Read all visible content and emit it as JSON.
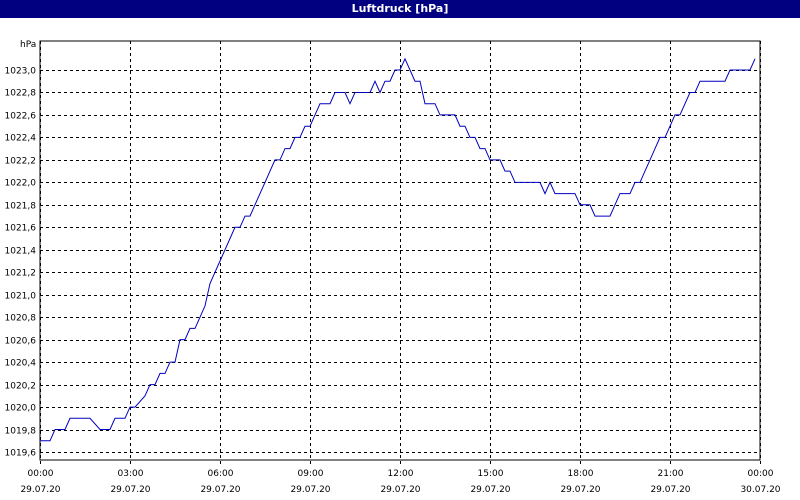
{
  "window": {
    "title": "Luftdruck [hPa]"
  },
  "chart_data": {
    "type": "line",
    "title": "Luftdruck [hPa]",
    "ylabel": "hPa",
    "xlabel": "",
    "ylim": [
      1019.6,
      1023.0
    ],
    "xlim": [
      "29.07.20 00:00",
      "30.07.20 00:00"
    ],
    "grid": true,
    "y_ticks": [
      "1019,6",
      "1019,8",
      "1020,0",
      "1020,2",
      "1020,4",
      "1020,6",
      "1020,8",
      "1021,0",
      "1021,2",
      "1021,4",
      "1021,6",
      "1021,8",
      "1022,0",
      "1022,2",
      "1022,4",
      "1022,6",
      "1022,8",
      "1023,0"
    ],
    "x_ticks": [
      {
        "time": "00:00",
        "date": "29.07.20"
      },
      {
        "time": "03:00",
        "date": "29.07.20"
      },
      {
        "time": "06:00",
        "date": "29.07.20"
      },
      {
        "time": "09:00",
        "date": "29.07.20"
      },
      {
        "time": "12:00",
        "date": "29.07.20"
      },
      {
        "time": "15:00",
        "date": "29.07.20"
      },
      {
        "time": "18:00",
        "date": "29.07.20"
      },
      {
        "time": "21:00",
        "date": "29.07.20"
      },
      {
        "time": "00:00",
        "date": "30.07.20"
      }
    ],
    "series": [
      {
        "color": "#0000c0",
        "points": [
          [
            "29.07.20 00:00",
            1019.7
          ],
          [
            "29.07.20 00:20",
            1019.7
          ],
          [
            "29.07.20 00:30",
            1019.8
          ],
          [
            "29.07.20 00:50",
            1019.8
          ],
          [
            "29.07.20 01:00",
            1019.9
          ],
          [
            "29.07.20 01:40",
            1019.9
          ],
          [
            "29.07.20 02:00",
            1019.8
          ],
          [
            "29.07.20 02:20",
            1019.8
          ],
          [
            "29.07.20 02:30",
            1019.9
          ],
          [
            "29.07.20 02:50",
            1019.9
          ],
          [
            "29.07.20 03:00",
            1020.0
          ],
          [
            "29.07.20 03:10",
            1020.0
          ],
          [
            "29.07.20 03:30",
            1020.1
          ],
          [
            "29.07.20 03:40",
            1020.2
          ],
          [
            "29.07.20 03:50",
            1020.2
          ],
          [
            "29.07.20 04:00",
            1020.3
          ],
          [
            "29.07.20 04:10",
            1020.3
          ],
          [
            "29.07.20 04:20",
            1020.4
          ],
          [
            "29.07.20 04:30",
            1020.4
          ],
          [
            "29.07.20 04:40",
            1020.6
          ],
          [
            "29.07.20 04:50",
            1020.6
          ],
          [
            "29.07.20 05:00",
            1020.7
          ],
          [
            "29.07.20 05:10",
            1020.7
          ],
          [
            "29.07.20 05:20",
            1020.8
          ],
          [
            "29.07.20 05:30",
            1020.9
          ],
          [
            "29.07.20 05:40",
            1021.1
          ],
          [
            "29.07.20 05:50",
            1021.2
          ],
          [
            "29.07.20 06:00",
            1021.3
          ],
          [
            "29.07.20 06:10",
            1021.4
          ],
          [
            "29.07.20 06:20",
            1021.5
          ],
          [
            "29.07.20 06:30",
            1021.6
          ],
          [
            "29.07.20 06:40",
            1021.6
          ],
          [
            "29.07.20 06:50",
            1021.7
          ],
          [
            "29.07.20 07:00",
            1021.7
          ],
          [
            "29.07.20 07:10",
            1021.8
          ],
          [
            "29.07.20 07:20",
            1021.9
          ],
          [
            "29.07.20 07:30",
            1022.0
          ],
          [
            "29.07.20 07:40",
            1022.1
          ],
          [
            "29.07.20 07:50",
            1022.2
          ],
          [
            "29.07.20 08:00",
            1022.2
          ],
          [
            "29.07.20 08:10",
            1022.3
          ],
          [
            "29.07.20 08:20",
            1022.3
          ],
          [
            "29.07.20 08:30",
            1022.4
          ],
          [
            "29.07.20 08:40",
            1022.4
          ],
          [
            "29.07.20 08:50",
            1022.5
          ],
          [
            "29.07.20 09:00",
            1022.5
          ],
          [
            "29.07.20 09:10",
            1022.6
          ],
          [
            "29.07.20 09:20",
            1022.7
          ],
          [
            "29.07.20 09:40",
            1022.7
          ],
          [
            "29.07.20 09:50",
            1022.8
          ],
          [
            "29.07.20 10:10",
            1022.8
          ],
          [
            "29.07.20 10:20",
            1022.7
          ],
          [
            "29.07.20 10:30",
            1022.8
          ],
          [
            "29.07.20 11:00",
            1022.8
          ],
          [
            "29.07.20 11:10",
            1022.9
          ],
          [
            "29.07.20 11:20",
            1022.8
          ],
          [
            "29.07.20 11:30",
            1022.9
          ],
          [
            "29.07.20 11:40",
            1022.9
          ],
          [
            "29.07.20 11:50",
            1023.0
          ],
          [
            "29.07.20 12:00",
            1023.0
          ],
          [
            "29.07.20 12:10",
            1023.1
          ],
          [
            "29.07.20 12:20",
            1023.0
          ],
          [
            "29.07.20 12:30",
            1022.9
          ],
          [
            "29.07.20 12:40",
            1022.9
          ],
          [
            "29.07.20 12:50",
            1022.7
          ],
          [
            "29.07.20 13:10",
            1022.7
          ],
          [
            "29.07.20 13:20",
            1022.6
          ],
          [
            "29.07.20 13:50",
            1022.6
          ],
          [
            "29.07.20 14:00",
            1022.5
          ],
          [
            "29.07.20 14:10",
            1022.5
          ],
          [
            "29.07.20 14:20",
            1022.4
          ],
          [
            "29.07.20 14:30",
            1022.4
          ],
          [
            "29.07.20 14:40",
            1022.3
          ],
          [
            "29.07.20 14:50",
            1022.3
          ],
          [
            "29.07.20 15:00",
            1022.2
          ],
          [
            "29.07.20 15:20",
            1022.2
          ],
          [
            "29.07.20 15:30",
            1022.1
          ],
          [
            "29.07.20 15:40",
            1022.1
          ],
          [
            "29.07.20 15:50",
            1022.0
          ],
          [
            "29.07.20 16:40",
            1022.0
          ],
          [
            "29.07.20 16:50",
            1021.9
          ],
          [
            "29.07.20 17:00",
            1022.0
          ],
          [
            "29.07.20 17:10",
            1021.9
          ],
          [
            "29.07.20 17:50",
            1021.9
          ],
          [
            "29.07.20 18:00",
            1021.8
          ],
          [
            "29.07.20 18:20",
            1021.8
          ],
          [
            "29.07.20 18:30",
            1021.7
          ],
          [
            "29.07.20 19:00",
            1021.7
          ],
          [
            "29.07.20 19:10",
            1021.8
          ],
          [
            "29.07.20 19:20",
            1021.9
          ],
          [
            "29.07.20 19:40",
            1021.9
          ],
          [
            "29.07.20 19:50",
            1022.0
          ],
          [
            "29.07.20 20:00",
            1022.0
          ],
          [
            "29.07.20 20:10",
            1022.1
          ],
          [
            "29.07.20 20:20",
            1022.2
          ],
          [
            "29.07.20 20:30",
            1022.3
          ],
          [
            "29.07.20 20:40",
            1022.4
          ],
          [
            "29.07.20 20:50",
            1022.4
          ],
          [
            "29.07.20 21:00",
            1022.5
          ],
          [
            "29.07.20 21:10",
            1022.6
          ],
          [
            "29.07.20 21:20",
            1022.6
          ],
          [
            "29.07.20 21:30",
            1022.7
          ],
          [
            "29.07.20 21:40",
            1022.8
          ],
          [
            "29.07.20 21:50",
            1022.8
          ],
          [
            "29.07.20 22:00",
            1022.9
          ],
          [
            "29.07.20 22:50",
            1022.9
          ],
          [
            "29.07.20 23:00",
            1023.0
          ],
          [
            "29.07.20 23:40",
            1023.0
          ],
          [
            "29.07.20 23:50",
            1023.1
          ]
        ]
      }
    ]
  }
}
